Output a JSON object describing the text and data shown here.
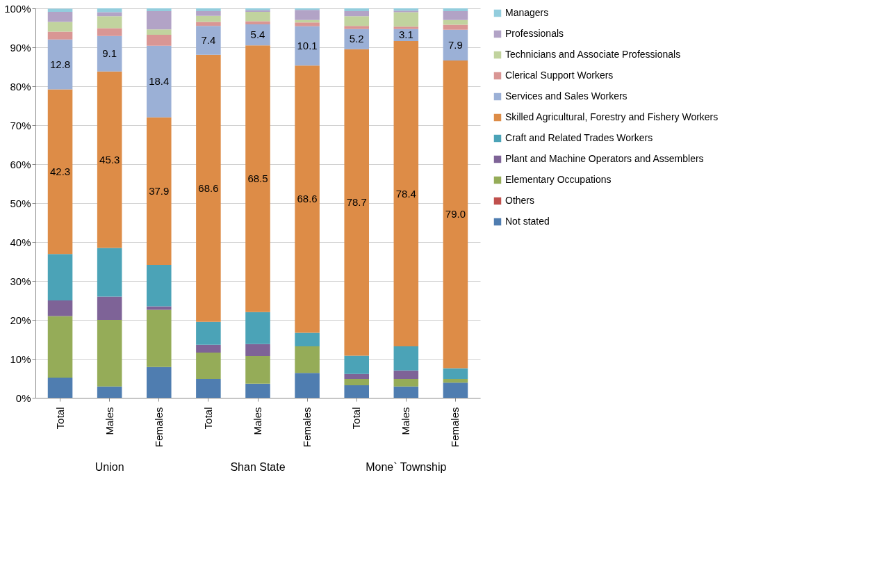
{
  "chart_data": {
    "type": "bar",
    "stacked": true,
    "categories": [
      "Total",
      "Males",
      "Females",
      "Total",
      "Males",
      "Females",
      "Total",
      "Males",
      "Females"
    ],
    "series": [
      {
        "name": "Not stated",
        "color": "#4f7db0",
        "values": [
          5.2,
          2.9,
          7.9,
          4.8,
          3.6,
          6.4,
          3.2,
          2.9,
          3.9
        ]
      },
      {
        "name": "Others",
        "color": "#c0504d",
        "values": [
          0.0,
          0.0,
          0.0,
          0.0,
          0.0,
          0.0,
          0.0,
          0.0,
          0.0
        ]
      },
      {
        "name": "Elementary Occupations",
        "color": "#95ac58",
        "values": [
          15.8,
          17.1,
          14.7,
          6.8,
          7.1,
          6.8,
          1.6,
          1.9,
          0.9
        ]
      },
      {
        "name": "Plant and Machine Operators and Assemblers",
        "color": "#7e6397",
        "values": [
          4.0,
          6.0,
          0.9,
          2.0,
          3.1,
          0.0,
          1.3,
          2.2,
          0.0
        ]
      },
      {
        "name": "Craft and Related Trades Workers",
        "color": "#4ba3b7",
        "values": [
          11.9,
          12.5,
          10.6,
          5.9,
          8.2,
          3.5,
          4.7,
          6.2,
          2.8
        ]
      },
      {
        "name": "Skilled Agricultural, Forestry and Fishery Workers",
        "color": "#dd8c47",
        "values": [
          42.3,
          45.3,
          37.9,
          68.6,
          68.5,
          68.6,
          78.7,
          78.4,
          79.0
        ],
        "value_labels": [
          "42.3",
          "45.3",
          "37.9",
          "68.6",
          "68.5",
          "68.6",
          "78.7",
          "78.4",
          "79.0"
        ]
      },
      {
        "name": "Services and Sales Workers",
        "color": "#9bb0d6",
        "values": [
          12.8,
          9.1,
          18.4,
          7.4,
          5.4,
          10.1,
          5.2,
          3.1,
          7.9
        ],
        "value_labels": [
          "12.8",
          "9.1",
          "18.4",
          "7.4",
          "5.4",
          "10.1",
          "5.2",
          "3.1",
          "7.9"
        ]
      },
      {
        "name": "Clerical Support Workers",
        "color": "#d99694",
        "values": [
          2.0,
          2.0,
          2.8,
          1.0,
          0.8,
          1.0,
          0.8,
          0.6,
          1.3
        ]
      },
      {
        "name": "Technicians and Associate Professionals",
        "color": "#c1d39e",
        "values": [
          2.5,
          3.1,
          1.4,
          1.6,
          2.4,
          0.6,
          2.5,
          3.7,
          1.2
        ]
      },
      {
        "name": "Professionals",
        "color": "#b2a3c6",
        "values": [
          2.6,
          1.0,
          4.7,
          1.2,
          0.4,
          2.6,
          1.3,
          0.4,
          2.3
        ]
      },
      {
        "name": "Managers",
        "color": "#93cddd",
        "values": [
          0.8,
          1.0,
          0.7,
          0.7,
          0.5,
          0.4,
          0.7,
          0.6,
          0.7
        ]
      }
    ],
    "ylim": [
      0,
      100
    ],
    "yticks": [
      {
        "value": 0,
        "label": "0%"
      },
      {
        "value": 10,
        "label": "10%"
      },
      {
        "value": 20,
        "label": "20%"
      },
      {
        "value": 30,
        "label": "30%"
      },
      {
        "value": 40,
        "label": "40%"
      },
      {
        "value": 50,
        "label": "50%"
      },
      {
        "value": 60,
        "label": "60%"
      },
      {
        "value": 70,
        "label": "70%"
      },
      {
        "value": 80,
        "label": "80%"
      },
      {
        "value": 90,
        "label": "90%"
      },
      {
        "value": 100,
        "label": "100%"
      }
    ],
    "grid": "y",
    "legend": "right",
    "annotations": [
      "Union",
      "Shan State",
      "Mone` Township"
    ]
  }
}
